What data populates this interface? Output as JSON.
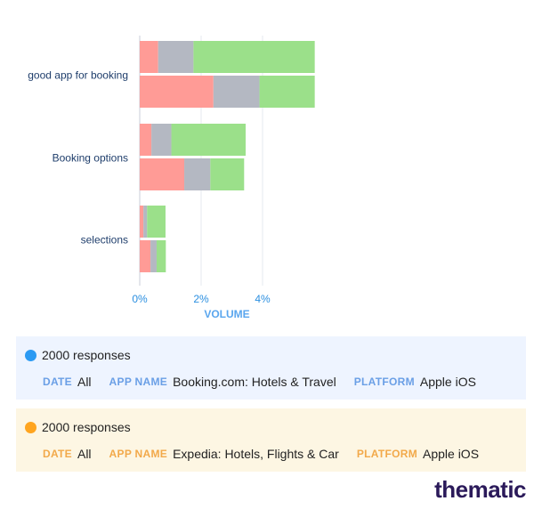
{
  "chart_data": {
    "type": "bar",
    "orientation": "horizontal",
    "stacked": true,
    "categories": [
      "good app for booking",
      "Booking options",
      "selections"
    ],
    "xlabel": "VOLUME",
    "xticks": [
      "0%",
      "2%",
      "4%"
    ],
    "xlim": [
      0,
      5.7
    ],
    "grid": true,
    "colors": {
      "negative": "#ff9b96",
      "neutral": "#b4b8c2",
      "positive": "#9be08a"
    },
    "groups": [
      {
        "name": "2000 responses",
        "color": "#2b9af3",
        "values": [
          {
            "negative": 0.6,
            "neutral": 1.15,
            "positive": 3.95
          },
          {
            "negative": 0.38,
            "neutral": 0.65,
            "positive": 2.42
          },
          {
            "negative": 0.12,
            "neutral": 0.12,
            "positive": 0.6
          }
        ]
      },
      {
        "name": "2000 responses",
        "color": "#ffa51f",
        "values": [
          {
            "negative": 2.4,
            "neutral": 1.5,
            "positive": 1.8
          },
          {
            "negative": 1.45,
            "neutral": 0.85,
            "positive": 1.1
          },
          {
            "negative": 0.35,
            "neutral": 0.2,
            "positive": 0.3
          }
        ]
      }
    ]
  },
  "legend": [
    {
      "responses": "2000 responses",
      "date_key": "DATE",
      "date_val": "All",
      "app_key": "APP NAME",
      "app_val": "Booking.com: Hotels & Travel",
      "platform_key": "PLATFORM",
      "platform_val": "Apple iOS"
    },
    {
      "responses": "2000 responses",
      "date_key": "DATE",
      "date_val": "All",
      "app_key": "APP NAME",
      "app_val": "Expedia: Hotels, Flights & Car",
      "platform_key": "PLATFORM",
      "platform_val": "Apple iOS"
    }
  ],
  "brand": "thematic"
}
